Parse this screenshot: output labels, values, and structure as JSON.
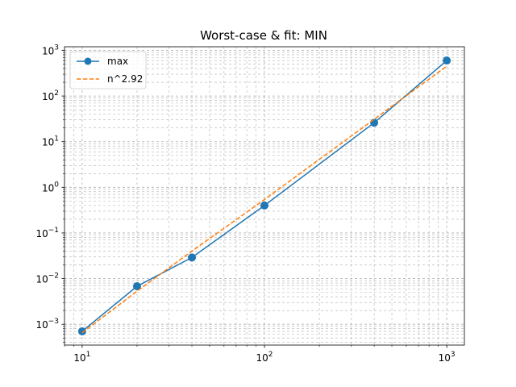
{
  "chart_data": {
    "type": "line",
    "title": "Worst-case & fit: MIN",
    "xlabel": "",
    "ylabel": "",
    "xscale": "log",
    "yscale": "log",
    "xlim": [
      8,
      1250
    ],
    "ylim": [
      0.00035,
      1200
    ],
    "grid": true,
    "grid_style": "dashed, major and minor",
    "legend_position": "top-left",
    "x_ticks": [
      {
        "value": 10,
        "base": "10",
        "exp": "1"
      },
      {
        "value": 100,
        "base": "10",
        "exp": "2"
      },
      {
        "value": 1000,
        "base": "10",
        "exp": "3"
      }
    ],
    "y_ticks": [
      {
        "value": 0.001,
        "base": "10",
        "exp": "−3"
      },
      {
        "value": 0.01,
        "base": "10",
        "exp": "−2"
      },
      {
        "value": 0.1,
        "base": "10",
        "exp": "−1"
      },
      {
        "value": 1,
        "base": "10",
        "exp": "0"
      },
      {
        "value": 10,
        "base": "10",
        "exp": "1"
      },
      {
        "value": 100,
        "base": "10",
        "exp": "2"
      },
      {
        "value": 1000,
        "base": "10",
        "exp": "3"
      }
    ],
    "series": [
      {
        "name": "max",
        "style": "solid-with-markers",
        "color": "#1f77b4",
        "x": [
          10,
          20,
          40,
          100,
          400,
          1000
        ],
        "y": [
          0.0007,
          0.0068,
          0.029,
          0.4,
          26,
          600
        ]
      },
      {
        "name": "n^2.92",
        "style": "dashed",
        "color": "#ff7f0e",
        "x": [
          10,
          20,
          40,
          100,
          400,
          1000
        ],
        "y": [
          0.00065,
          0.0053,
          0.04,
          0.54,
          31,
          450
        ]
      }
    ]
  }
}
